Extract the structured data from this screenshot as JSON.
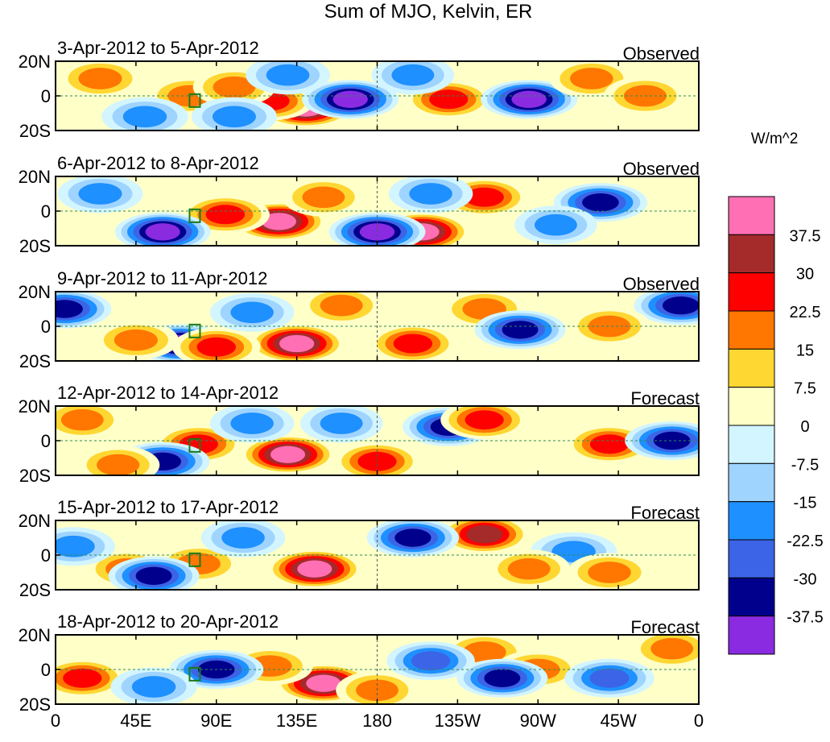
{
  "chart_data": {
    "type": "heatmap",
    "title": "Sum of MJO, Kelvin, ER",
    "units_label": "W/m^2",
    "x_ticks": [
      "0",
      "45E",
      "90E",
      "135E",
      "180",
      "135W",
      "90W",
      "45W",
      "0"
    ],
    "y_ticks": [
      "20N",
      "0",
      "20S"
    ],
    "x_range_deg_east": [
      0,
      360
    ],
    "y_range_deg_lat": [
      -20,
      20
    ],
    "colorbar": {
      "labels": [
        "37.5",
        "30",
        "22.5",
        "15",
        "7.5",
        "0",
        "-7.5",
        "-15",
        "-22.5",
        "-30",
        "-37.5"
      ],
      "colors": [
        "#ff6fb4",
        "#a52a2a",
        "#ff0000",
        "#ff7700",
        "#ffd732",
        "#ffffc8",
        "#d2f5ff",
        "#9fd4ff",
        "#1e90ff",
        "#3c64e6",
        "#00008c",
        "#8a2be2"
      ]
    },
    "panels": [
      {
        "date_range": "3-Apr-2012 to 5-Apr-2012",
        "status": "Observed",
        "blobs": [
          {
            "lon": 140,
            "lat": -7,
            "value": 40
          },
          {
            "lon": 120,
            "lat": -3,
            "value": 26
          },
          {
            "lon": 75,
            "lat": 0,
            "value": 20
          },
          {
            "lon": 100,
            "lat": 5,
            "value": 15
          },
          {
            "lon": 165,
            "lat": -2,
            "value": -40
          },
          {
            "lon": 100,
            "lat": -12,
            "value": -20
          },
          {
            "lon": 130,
            "lat": 12,
            "value": -18
          },
          {
            "lon": 220,
            "lat": -2,
            "value": 24
          },
          {
            "lon": 265,
            "lat": -2,
            "value": -40
          },
          {
            "lon": 25,
            "lat": 10,
            "value": 20
          },
          {
            "lon": 50,
            "lat": -12,
            "value": -22
          },
          {
            "lon": 300,
            "lat": 10,
            "value": 18
          },
          {
            "lon": 330,
            "lat": 0,
            "value": 16
          },
          {
            "lon": 200,
            "lat": 12,
            "value": -15
          }
        ]
      },
      {
        "date_range": "6-Apr-2012 to 8-Apr-2012",
        "status": "Observed",
        "blobs": [
          {
            "lon": 125,
            "lat": -6,
            "value": 38
          },
          {
            "lon": 95,
            "lat": -2,
            "value": 26
          },
          {
            "lon": 205,
            "lat": -12,
            "value": 40
          },
          {
            "lon": 180,
            "lat": -12,
            "value": -40
          },
          {
            "lon": 60,
            "lat": -12,
            "value": -38
          },
          {
            "lon": 25,
            "lat": 10,
            "value": -20
          },
          {
            "lon": 240,
            "lat": 8,
            "value": 25
          },
          {
            "lon": 305,
            "lat": 5,
            "value": -35
          },
          {
            "lon": 150,
            "lat": 8,
            "value": 15
          },
          {
            "lon": 210,
            "lat": 10,
            "value": -18
          },
          {
            "lon": 280,
            "lat": -8,
            "value": -15
          }
        ]
      },
      {
        "date_range": "9-Apr-2012 to 11-Apr-2012",
        "status": "Observed",
        "blobs": [
          {
            "lon": 135,
            "lat": -10,
            "value": 40
          },
          {
            "lon": 70,
            "lat": -10,
            "value": -38
          },
          {
            "lon": 90,
            "lat": -12,
            "value": 25
          },
          {
            "lon": 45,
            "lat": -8,
            "value": 20
          },
          {
            "lon": 200,
            "lat": -10,
            "value": 25
          },
          {
            "lon": 5,
            "lat": 10,
            "value": -35
          },
          {
            "lon": 240,
            "lat": 10,
            "value": 22
          },
          {
            "lon": 260,
            "lat": -2,
            "value": -30
          },
          {
            "lon": 350,
            "lat": 12,
            "value": -35
          },
          {
            "lon": 160,
            "lat": 12,
            "value": 16
          },
          {
            "lon": 110,
            "lat": 8,
            "value": -18
          },
          {
            "lon": 310,
            "lat": 0,
            "value": 15
          }
        ]
      },
      {
        "date_range": "12-Apr-2012 to 14-Apr-2012",
        "status": "Forecast",
        "blobs": [
          {
            "lon": 130,
            "lat": -8,
            "value": 38
          },
          {
            "lon": 80,
            "lat": -2,
            "value": 26
          },
          {
            "lon": 180,
            "lat": -12,
            "value": 24
          },
          {
            "lon": 60,
            "lat": -12,
            "value": -35
          },
          {
            "lon": 15,
            "lat": 12,
            "value": 15
          },
          {
            "lon": 220,
            "lat": 8,
            "value": -32
          },
          {
            "lon": 240,
            "lat": 12,
            "value": 24
          },
          {
            "lon": 310,
            "lat": -2,
            "value": 24
          },
          {
            "lon": 345,
            "lat": 0,
            "value": -36
          },
          {
            "lon": 110,
            "lat": 10,
            "value": -18
          },
          {
            "lon": 160,
            "lat": 10,
            "value": -15
          },
          {
            "lon": 35,
            "lat": -14,
            "value": 16
          }
        ]
      },
      {
        "date_range": "15-Apr-2012 to 17-Apr-2012",
        "status": "Forecast",
        "blobs": [
          {
            "lon": 145,
            "lat": -8,
            "value": 38
          },
          {
            "lon": 80,
            "lat": -5,
            "value": 22
          },
          {
            "lon": 40,
            "lat": -8,
            "value": 16
          },
          {
            "lon": 55,
            "lat": -12,
            "value": -30
          },
          {
            "lon": 240,
            "lat": 12,
            "value": 30
          },
          {
            "lon": 200,
            "lat": 10,
            "value": -32
          },
          {
            "lon": 290,
            "lat": 2,
            "value": -22
          },
          {
            "lon": 310,
            "lat": -10,
            "value": 18
          },
          {
            "lon": 105,
            "lat": 10,
            "value": -18
          },
          {
            "lon": 265,
            "lat": -8,
            "value": 15
          },
          {
            "lon": 10,
            "lat": 5,
            "value": -16
          }
        ]
      },
      {
        "date_range": "18-Apr-2012 to 20-Apr-2012",
        "status": "Forecast",
        "blobs": [
          {
            "lon": 150,
            "lat": -8,
            "value": 40
          },
          {
            "lon": 120,
            "lat": 2,
            "value": 22
          },
          {
            "lon": 90,
            "lat": 0,
            "value": -36
          },
          {
            "lon": 15,
            "lat": -5,
            "value": 24
          },
          {
            "lon": 55,
            "lat": -10,
            "value": -22
          },
          {
            "lon": 240,
            "lat": 10,
            "value": 20
          },
          {
            "lon": 270,
            "lat": 0,
            "value": 22
          },
          {
            "lon": 210,
            "lat": 5,
            "value": -25
          },
          {
            "lon": 250,
            "lat": -5,
            "value": -30
          },
          {
            "lon": 310,
            "lat": -5,
            "value": -28
          },
          {
            "lon": 345,
            "lat": 12,
            "value": 15
          },
          {
            "lon": 180,
            "lat": -12,
            "value": 15
          }
        ]
      }
    ]
  }
}
